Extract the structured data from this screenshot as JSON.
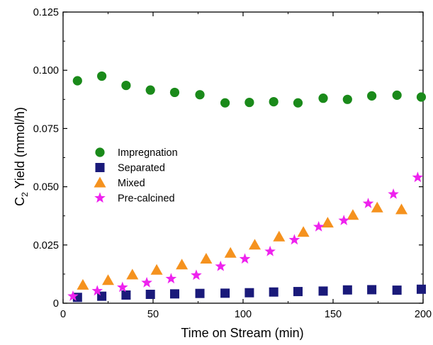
{
  "chart_data": {
    "type": "scatter",
    "xlabel": "Time on Stream (min)",
    "ylabel_main": "C",
    "ylabel_sub": "2",
    "ylabel_rest": " Yield (mmol/h)",
    "xlim": [
      0,
      200
    ],
    "ylim": [
      0,
      0.125
    ],
    "xticks": [
      0,
      50,
      100,
      150,
      200
    ],
    "xtick_labels": [
      "0",
      "50",
      "100",
      "150",
      "200"
    ],
    "yticks": [
      0,
      0.025,
      0.05,
      0.075,
      0.1,
      0.125
    ],
    "ytick_labels": [
      "0",
      "0.025",
      "0.050",
      "0.075",
      "0.100",
      "0.125"
    ],
    "grid": false,
    "legend_position": "center-left",
    "series": [
      {
        "name": "Impregnation",
        "marker": "circle",
        "color": "#1a8a1a",
        "x": [
          8,
          21.5,
          35,
          48.5,
          62,
          76,
          90,
          103.5,
          117,
          130.5,
          144.5,
          158,
          171.5,
          185.5,
          199
        ],
        "y": [
          0.0955,
          0.0975,
          0.0935,
          0.0915,
          0.0905,
          0.0895,
          0.086,
          0.0862,
          0.0865,
          0.086,
          0.088,
          0.0875,
          0.089,
          0.0893,
          0.0885
        ]
      },
      {
        "name": "Separated",
        "marker": "square",
        "color": "#1a1a7a",
        "x": [
          8,
          21.5,
          35,
          48.5,
          62,
          76,
          90,
          103.5,
          117,
          130.5,
          144.5,
          158,
          171.5,
          185.5,
          199
        ],
        "y": [
          0.0025,
          0.003,
          0.0035,
          0.0038,
          0.004,
          0.0042,
          0.0043,
          0.0045,
          0.0048,
          0.005,
          0.0052,
          0.0057,
          0.0058,
          0.0056,
          0.006
        ]
      },
      {
        "name": "Mixed",
        "marker": "triangle",
        "color": "#f5921e",
        "x": [
          11,
          25,
          38.5,
          52,
          66,
          79.5,
          93,
          106.5,
          120,
          133.5,
          147,
          161,
          174.5,
          188
        ],
        "y": [
          0.0078,
          0.0098,
          0.0122,
          0.0142,
          0.0165,
          0.019,
          0.0215,
          0.025,
          0.0285,
          0.0305,
          0.0345,
          0.0378,
          0.041,
          0.0402
        ]
      },
      {
        "name": "Pre-calcined",
        "marker": "star",
        "color": "#ee22ee",
        "x": [
          5.5,
          19,
          33,
          46.5,
          60,
          74,
          87.5,
          101,
          115,
          128.5,
          142,
          156,
          169.5,
          183.5,
          197
        ],
        "y": [
          0.003,
          0.0053,
          0.0068,
          0.0088,
          0.0105,
          0.012,
          0.0158,
          0.019,
          0.0222,
          0.0272,
          0.0328,
          0.0355,
          0.0428,
          0.0468,
          0.054
        ]
      }
    ]
  }
}
